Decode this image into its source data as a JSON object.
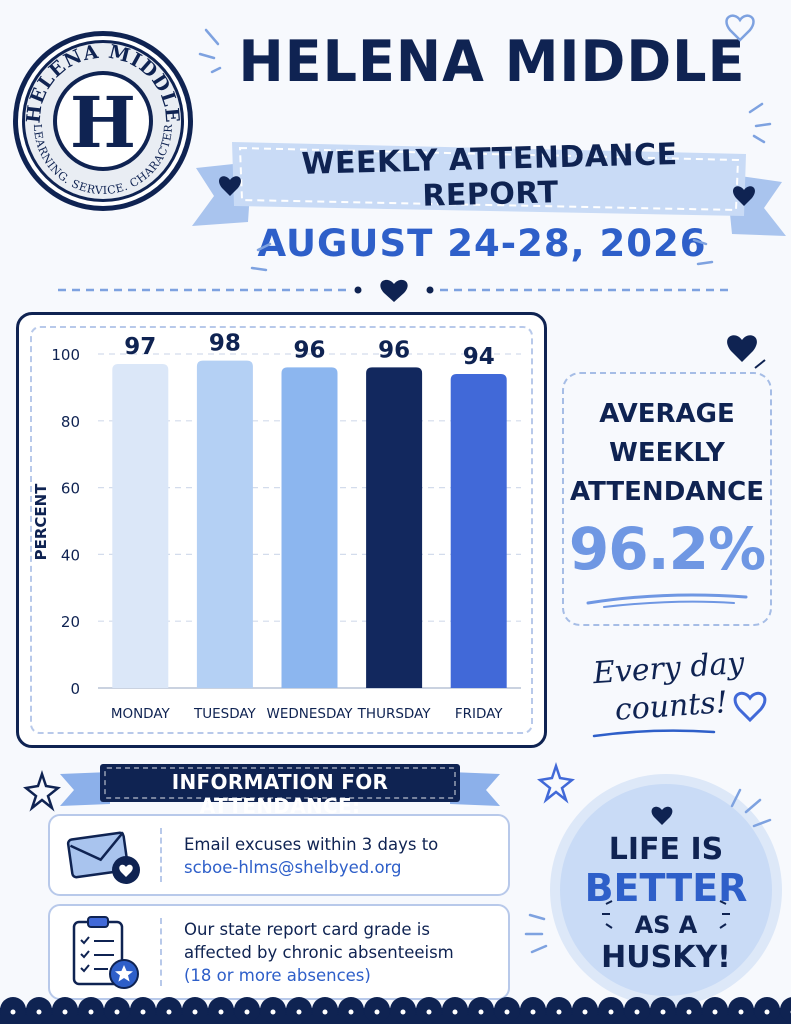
{
  "header": {
    "school_name": "HELENA MIDDLE",
    "subtitle": "WEEKLY ATTENDANCE REPORT",
    "date_range": "AUGUST 24-28, 2026"
  },
  "seal": {
    "top_text": "HELENA MIDDLE",
    "bottom_text": "LEARNING. SERVICE. CHARACTER",
    "letter": "H"
  },
  "chart_data": {
    "type": "bar",
    "categories": [
      "MONDAY",
      "TUESDAY",
      "WEDNESDAY",
      "THURSDAY",
      "FRIDAY"
    ],
    "values": [
      97,
      98,
      96,
      96,
      94
    ],
    "data_labels": [
      "97",
      "98",
      "96",
      "96",
      "94"
    ],
    "bar_colors": [
      "#dbe7f8",
      "#b4d0f4",
      "#8cb6ef",
      "#12285e",
      "#4169d8"
    ],
    "title": "",
    "xlabel": "",
    "ylabel": "PERCENT",
    "ylim": [
      0,
      100
    ],
    "yticks": [
      0,
      20,
      40,
      60,
      80,
      100
    ],
    "grid": true,
    "legend": "none"
  },
  "average": {
    "label_lines": [
      "AVERAGE",
      "WEEKLY",
      "ATTENDANCE"
    ],
    "value": "96.2%"
  },
  "slogan": {
    "line1": "Every day",
    "line2": "counts!"
  },
  "info": {
    "title": "INFORMATION FOR ATTENDANCE:",
    "items": [
      {
        "icon": "envelope-heart-icon",
        "line1": "Email excuses within 3 days to",
        "line2": "scboe-hlms@shelbyed.org"
      },
      {
        "icon": "clipboard-checklist-icon",
        "line1": "Our state report card grade is",
        "line2": "affected by chronic absenteeism",
        "line3": "(18 or more absences)"
      }
    ]
  },
  "husky": {
    "line1": "LIFE IS",
    "line2": "BETTER",
    "line3": "AS A",
    "line4": "HUSKY!"
  },
  "colors": {
    "navy": "#0f2352",
    "accent_blue": "#2e5fc9",
    "light_blue": "#c9dbf6",
    "background": "#f7f9fd"
  }
}
